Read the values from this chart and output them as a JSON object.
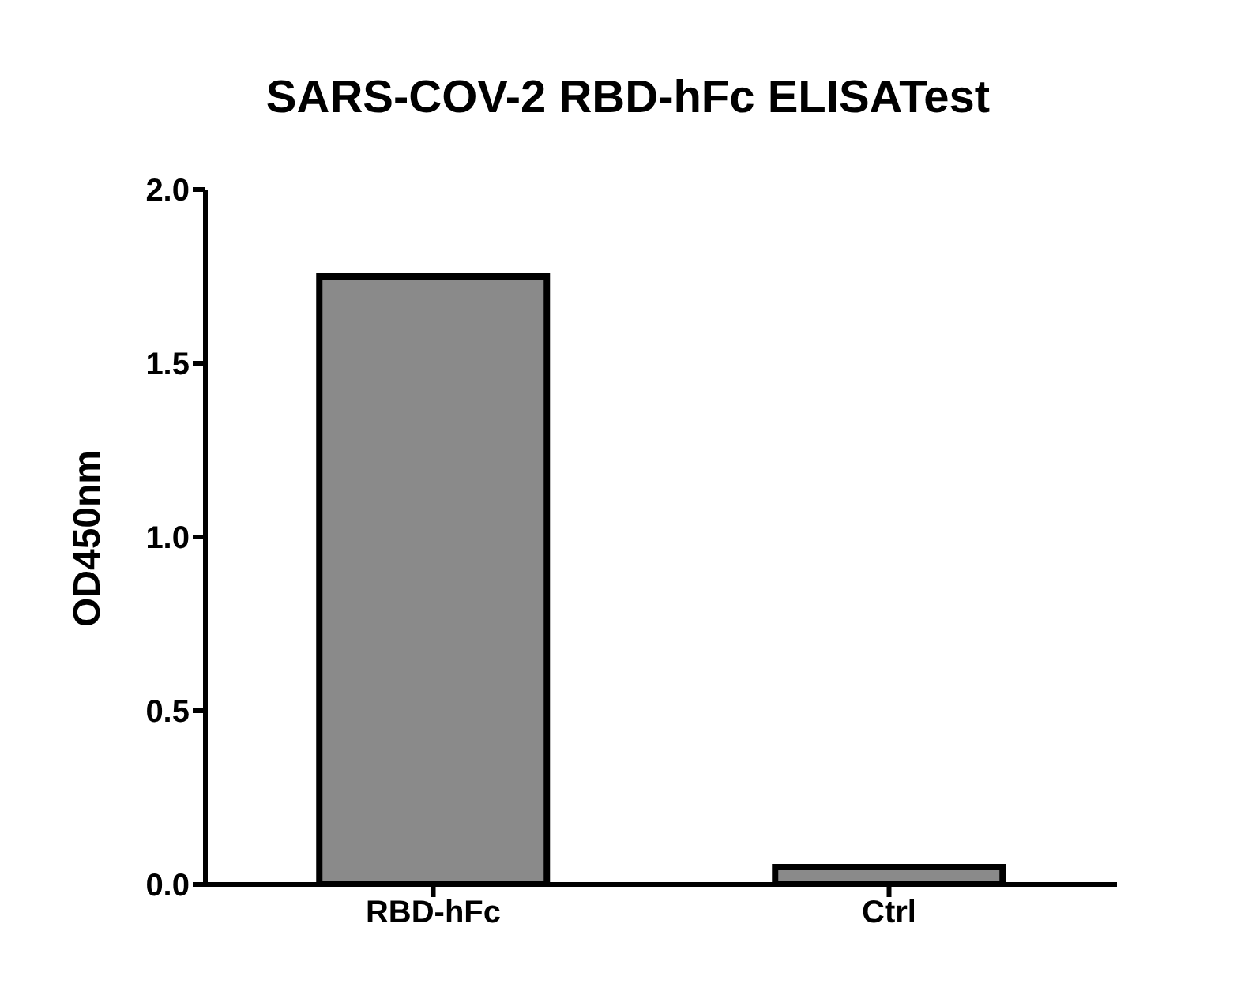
{
  "chart_data": {
    "type": "bar",
    "title": "SARS-COV-2 RBD-hFc ELISATest",
    "ylabel": "OD450nm",
    "categories": [
      "RBD-hFc",
      "Ctrl"
    ],
    "values": [
      1.75,
      0.05
    ],
    "color": "#8a8a8a",
    "ylim": [
      0,
      2
    ],
    "yticks": [
      {
        "value": 0,
        "label": "0.0"
      },
      {
        "value": 0.5,
        "label": "0.5"
      },
      {
        "value": 1,
        "label": "1.0"
      },
      {
        "value": 1.5,
        "label": "1.5"
      },
      {
        "value": 2,
        "label": "2.0"
      }
    ],
    "grid": false
  }
}
